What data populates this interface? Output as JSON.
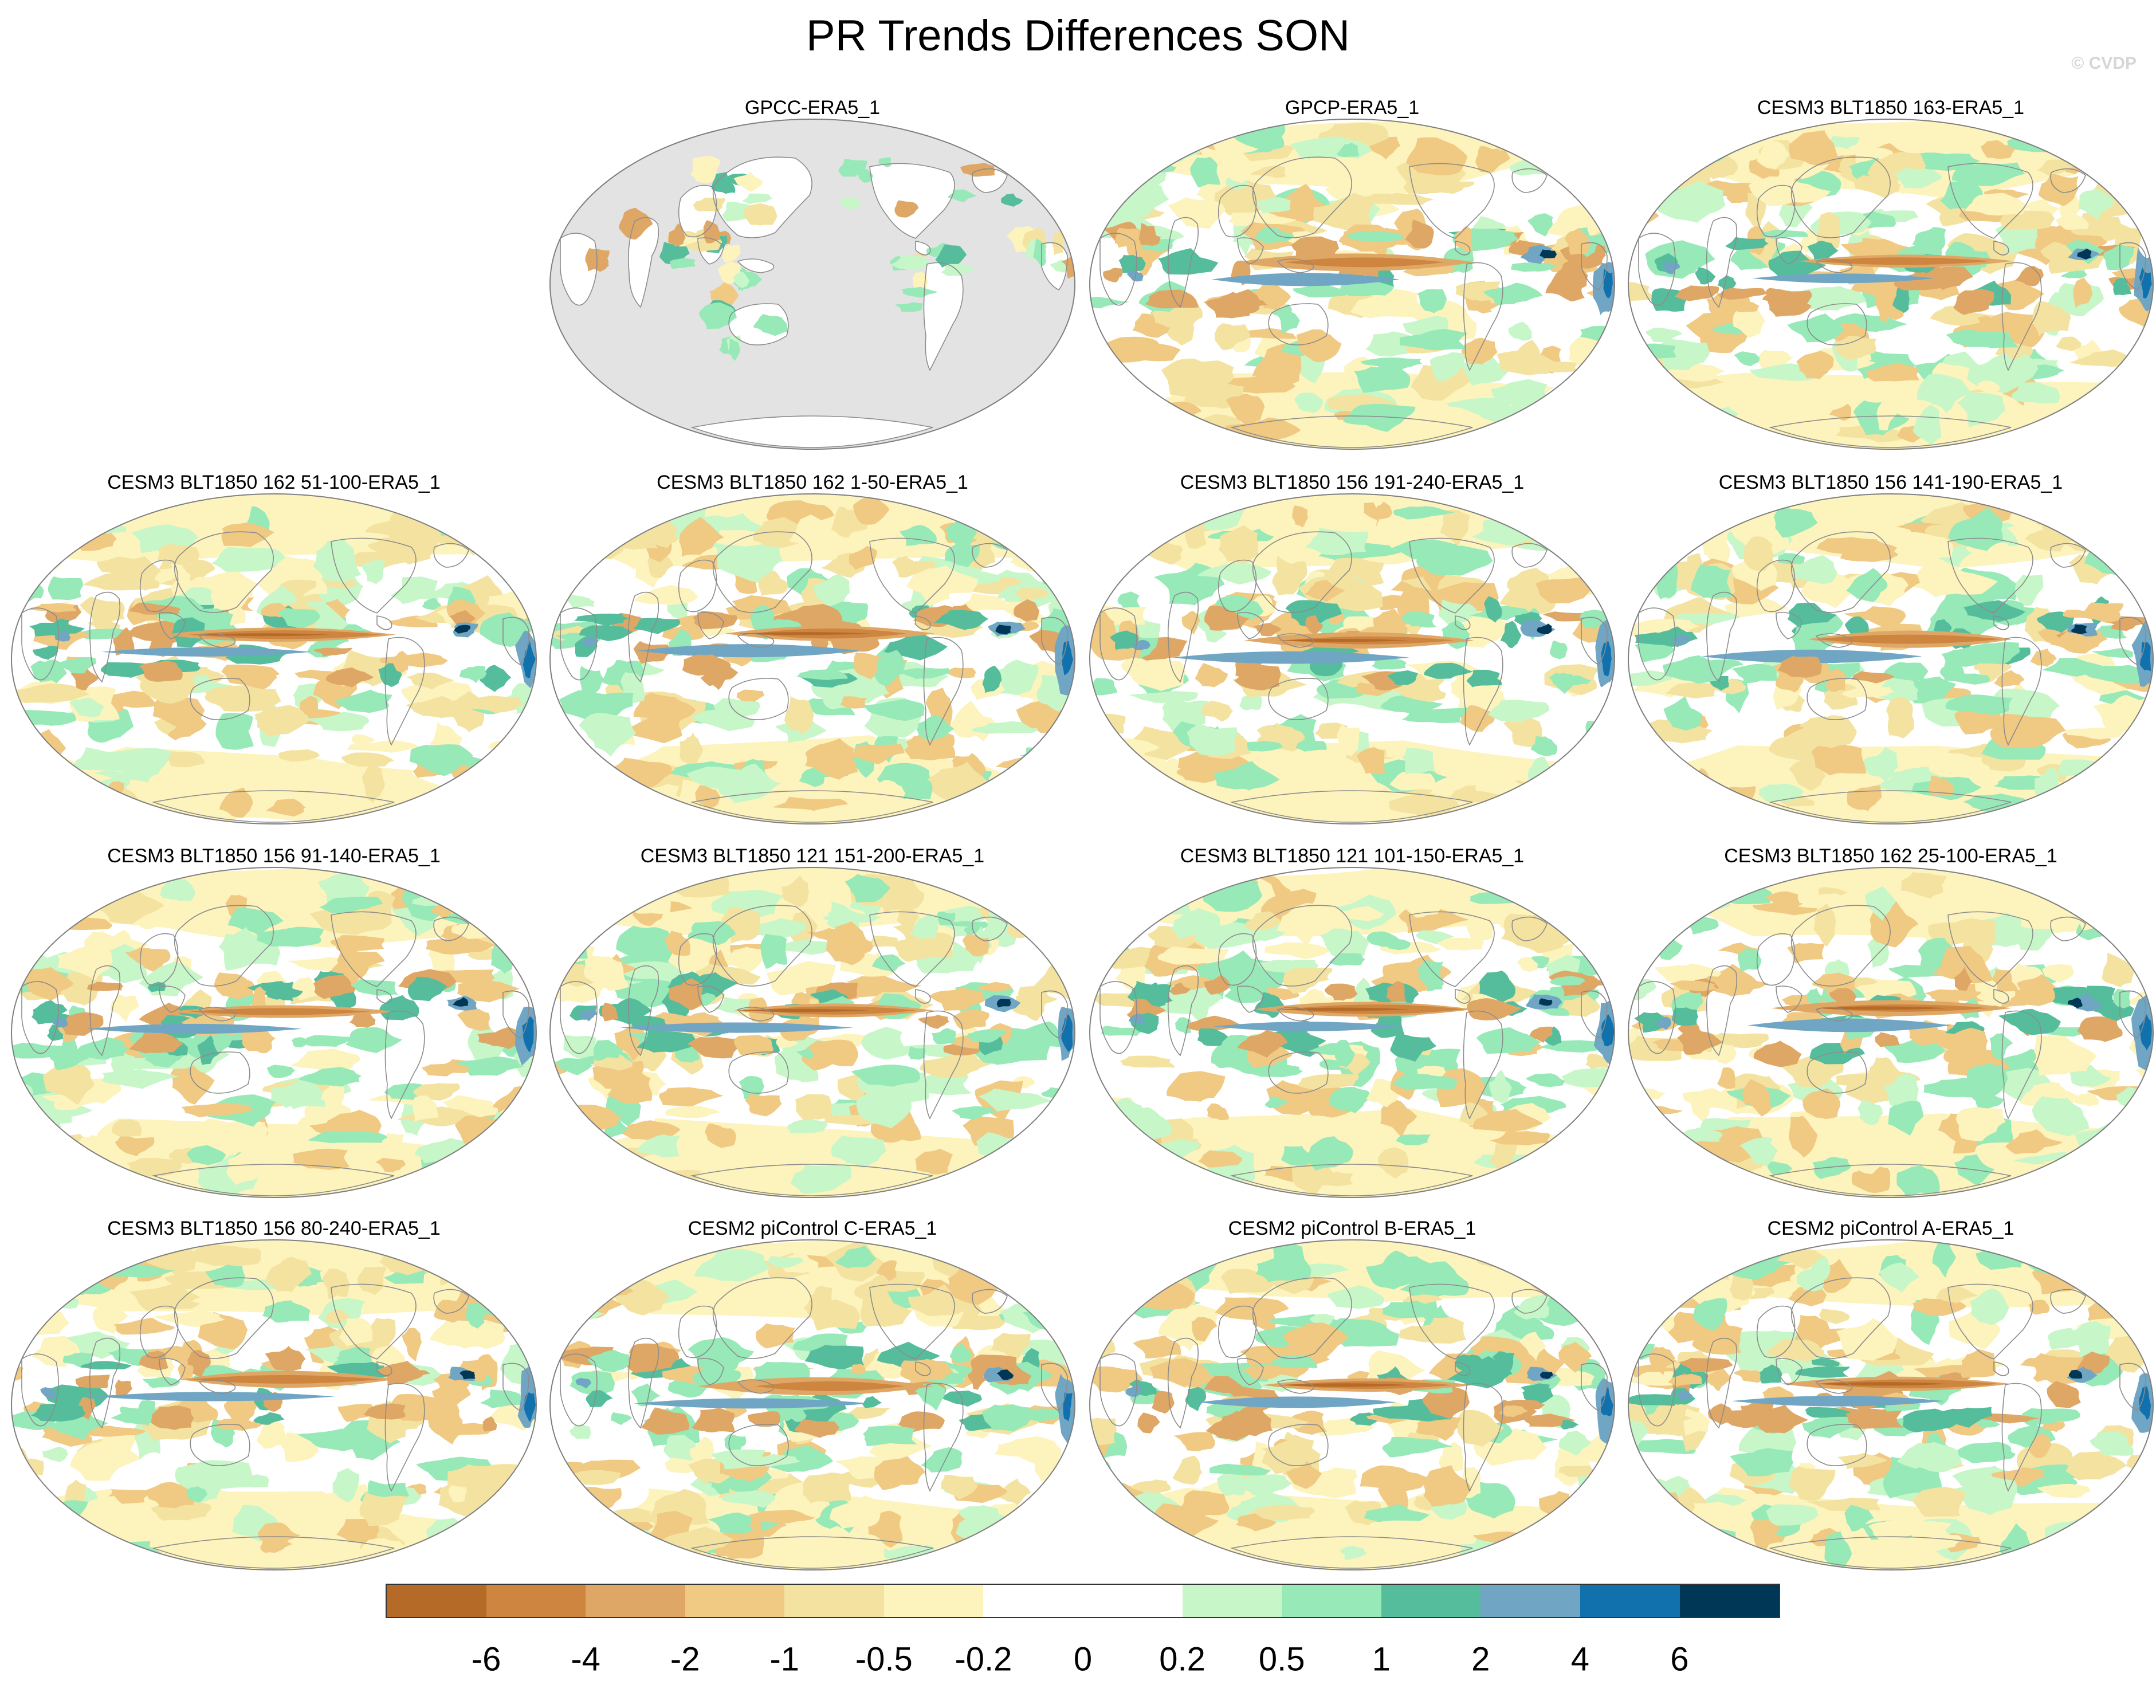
{
  "title": "PR Trends Differences SON",
  "watermark": "© CVDP",
  "colors": {
    "land_mask": "#e3e3e3",
    "coastline": "#8c8c8c",
    "border": "#7f7f7f"
  },
  "panels": [
    {
      "id": "gpcc",
      "label": "GPCC-ERA5_1",
      "row": 0,
      "col": 1,
      "land_only": true
    },
    {
      "id": "gpcp",
      "label": "GPCP-ERA5_1",
      "row": 0,
      "col": 2,
      "land_only": false
    },
    {
      "id": "c163",
      "label": "CESM3 BLT1850 163-ERA5_1",
      "row": 0,
      "col": 3,
      "land_only": false
    },
    {
      "id": "c162a",
      "label": "CESM3 BLT1850 162 51-100-ERA5_1",
      "row": 1,
      "col": 0,
      "land_only": false
    },
    {
      "id": "c162b",
      "label": "CESM3 BLT1850 162 1-50-ERA5_1",
      "row": 1,
      "col": 1,
      "land_only": false
    },
    {
      "id": "c156a",
      "label": "CESM3 BLT1850 156 191-240-ERA5_1",
      "row": 1,
      "col": 2,
      "land_only": false
    },
    {
      "id": "c156b",
      "label": "CESM3 BLT1850 156 141-190-ERA5_1",
      "row": 1,
      "col": 3,
      "land_only": false
    },
    {
      "id": "c156c",
      "label": "CESM3 BLT1850 156 91-140-ERA5_1",
      "row": 2,
      "col": 0,
      "land_only": false
    },
    {
      "id": "c121a",
      "label": "CESM3 BLT1850 121 151-200-ERA5_1",
      "row": 2,
      "col": 1,
      "land_only": false
    },
    {
      "id": "c121b",
      "label": "CESM3 BLT1850 121 101-150-ERA5_1",
      "row": 2,
      "col": 2,
      "land_only": false
    },
    {
      "id": "c162c",
      "label": "CESM3 BLT1850 162 25-100-ERA5_1",
      "row": 2,
      "col": 3,
      "land_only": false
    },
    {
      "id": "c156d",
      "label": "CESM3 BLT1850 156 80-240-ERA5_1",
      "row": 3,
      "col": 0,
      "land_only": false
    },
    {
      "id": "cesm2c",
      "label": "CESM2 piControl C-ERA5_1",
      "row": 3,
      "col": 1,
      "land_only": false
    },
    {
      "id": "cesm2b",
      "label": "CESM2 piControl B-ERA5_1",
      "row": 3,
      "col": 2,
      "land_only": false
    },
    {
      "id": "cesm2a",
      "label": "CESM2 piControl A-ERA5_1",
      "row": 3,
      "col": 3,
      "land_only": false
    }
  ],
  "colorbar": {
    "levels": [
      "-6",
      "-4",
      "-2",
      "-1",
      "-0.5",
      "-0.2",
      "0",
      "0.2",
      "0.5",
      "1",
      "2",
      "4",
      "6"
    ],
    "colors": [
      "#b66a28",
      "#cd853f",
      "#dfa766",
      "#f0c983",
      "#f4e3a0",
      "#fdf3bd",
      "#ffffff",
      "#ffffff",
      "#c7f6c9",
      "#97e9b8",
      "#55bd9c",
      "#70a6c4",
      "#1171ad",
      "#013756"
    ]
  }
}
